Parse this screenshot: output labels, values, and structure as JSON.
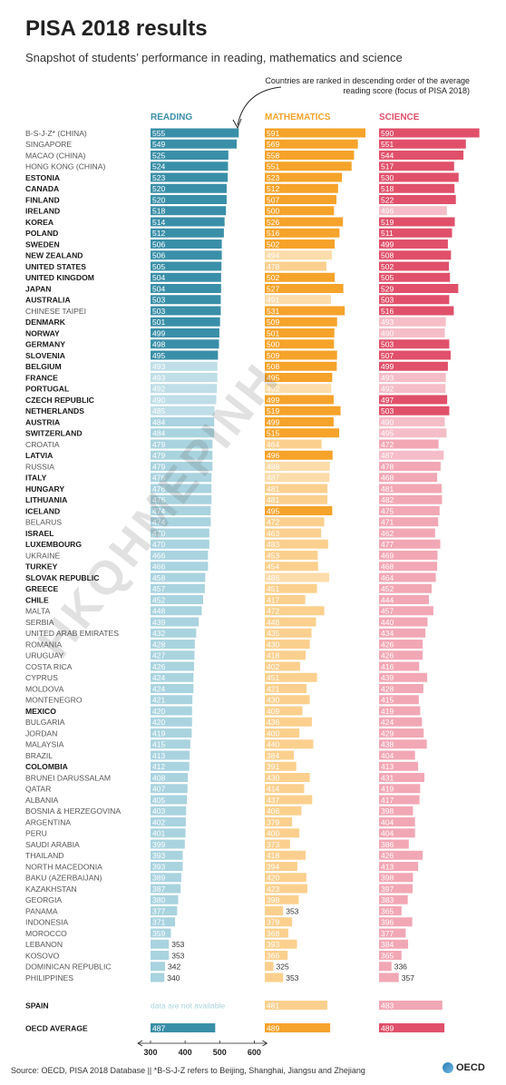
{
  "title": "PISA 2018 results",
  "subtitle": "Snapshot of students’ performance in reading, mathematics and science",
  "note": "Countries are ranked in descending order of the average reading score (focus of PISA 2018)",
  "watermark": "HKQHMEPINH",
  "source": "Source: OECD, PISA 2018 Database  ||  *B-S-J-Z refers to Beijing, Shanghai, Jiangsu and Zhejiang",
  "logo": "OECD",
  "colors": {
    "reading": "#3a8fa8",
    "reading_light": "#a9d3df",
    "math": "#f5a32a",
    "math_light": "#fbd08e",
    "science": "#e0506a",
    "science_light": "#f2a7b4",
    "oecd_reading": "#3a8fa8",
    "oecd_math": "#f5a32a",
    "oecd_science": "#e0506a"
  },
  "chart_data": {
    "type": "bar",
    "series": [
      {
        "name": "READING"
      },
      {
        "name": "MATHEMATICS"
      },
      {
        "name": "SCIENCE"
      }
    ],
    "xlim": [
      300,
      600
    ],
    "xticks": [
      "300",
      "400",
      "500",
      "600"
    ],
    "rows": [
      {
        "country": "B-S-J-Z* (CHINA)",
        "oecd": false,
        "r": 555,
        "m": 591,
        "s": 590,
        "rs": "above",
        "ms": "above",
        "ss": "above"
      },
      {
        "country": "SINGAPORE",
        "oecd": false,
        "r": 549,
        "m": 569,
        "s": 551,
        "rs": "above",
        "ms": "above",
        "ss": "above"
      },
      {
        "country": "MACAO (CHINA)",
        "oecd": false,
        "r": 525,
        "m": 558,
        "s": 544,
        "rs": "above",
        "ms": "above",
        "ss": "above"
      },
      {
        "country": "HONG KONG (CHINA)",
        "oecd": false,
        "r": 524,
        "m": 551,
        "s": 517,
        "rs": "above",
        "ms": "above",
        "ss": "above"
      },
      {
        "country": "ESTONIA",
        "oecd": true,
        "r": 523,
        "m": 523,
        "s": 530,
        "rs": "above",
        "ms": "above",
        "ss": "above"
      },
      {
        "country": "CANADA",
        "oecd": true,
        "r": 520,
        "m": 512,
        "s": 518,
        "rs": "above",
        "ms": "above",
        "ss": "above"
      },
      {
        "country": "FINLAND",
        "oecd": true,
        "r": 520,
        "m": 507,
        "s": 522,
        "rs": "above",
        "ms": "above",
        "ss": "above"
      },
      {
        "country": "IRELAND",
        "oecd": true,
        "r": 518,
        "m": 500,
        "s": 496,
        "rs": "above",
        "ms": "above",
        "ss": "not"
      },
      {
        "country": "KOREA",
        "oecd": true,
        "r": 514,
        "m": 526,
        "s": 519,
        "rs": "above",
        "ms": "above",
        "ss": "above"
      },
      {
        "country": "POLAND",
        "oecd": true,
        "r": 512,
        "m": 516,
        "s": 511,
        "rs": "above",
        "ms": "above",
        "ss": "above"
      },
      {
        "country": "SWEDEN",
        "oecd": true,
        "r": 506,
        "m": 502,
        "s": 499,
        "rs": "above",
        "ms": "above",
        "ss": "above"
      },
      {
        "country": "NEW ZEALAND",
        "oecd": true,
        "r": 506,
        "m": 494,
        "s": 508,
        "rs": "above",
        "ms": "not",
        "ss": "above"
      },
      {
        "country": "UNITED STATES",
        "oecd": true,
        "r": 505,
        "m": 478,
        "s": 502,
        "rs": "above",
        "ms": "below",
        "ss": "above"
      },
      {
        "country": "UNITED KINGDOM",
        "oecd": true,
        "r": 504,
        "m": 502,
        "s": 505,
        "rs": "above",
        "ms": "above",
        "ss": "above"
      },
      {
        "country": "JAPAN",
        "oecd": true,
        "r": 504,
        "m": 527,
        "s": 529,
        "rs": "above",
        "ms": "above",
        "ss": "above"
      },
      {
        "country": "AUSTRALIA",
        "oecd": true,
        "r": 503,
        "m": 491,
        "s": 503,
        "rs": "above",
        "ms": "not",
        "ss": "above"
      },
      {
        "country": "CHINESE TAIPEI",
        "oecd": false,
        "r": 503,
        "m": 531,
        "s": 516,
        "rs": "above",
        "ms": "above",
        "ss": "above"
      },
      {
        "country": "DENMARK",
        "oecd": true,
        "r": 501,
        "m": 509,
        "s": 493,
        "rs": "above",
        "ms": "above",
        "ss": "not"
      },
      {
        "country": "NORWAY",
        "oecd": true,
        "r": 499,
        "m": 501,
        "s": 490,
        "rs": "above",
        "ms": "above",
        "ss": "not"
      },
      {
        "country": "GERMANY",
        "oecd": true,
        "r": 498,
        "m": 500,
        "s": 503,
        "rs": "above",
        "ms": "above",
        "ss": "above"
      },
      {
        "country": "SLOVENIA",
        "oecd": true,
        "r": 495,
        "m": 509,
        "s": 507,
        "rs": "above",
        "ms": "above",
        "ss": "above"
      },
      {
        "country": "BELGIUM",
        "oecd": true,
        "r": 493,
        "m": 508,
        "s": 499,
        "rs": "not",
        "ms": "above",
        "ss": "above"
      },
      {
        "country": "FRANCE",
        "oecd": true,
        "r": 493,
        "m": 495,
        "s": 493,
        "rs": "not",
        "ms": "above",
        "ss": "not"
      },
      {
        "country": "PORTUGAL",
        "oecd": true,
        "r": 492,
        "m": 492,
        "s": 492,
        "rs": "not",
        "ms": "not",
        "ss": "not"
      },
      {
        "country": "CZECH REPUBLIC",
        "oecd": true,
        "r": 490,
        "m": 499,
        "s": 497,
        "rs": "not",
        "ms": "above",
        "ss": "above"
      },
      {
        "country": "NETHERLANDS",
        "oecd": true,
        "r": 485,
        "m": 519,
        "s": 503,
        "rs": "not",
        "ms": "above",
        "ss": "above"
      },
      {
        "country": "AUSTRIA",
        "oecd": true,
        "r": 484,
        "m": 499,
        "s": 490,
        "rs": "below",
        "ms": "above",
        "ss": "not"
      },
      {
        "country": "SWITZERLAND",
        "oecd": true,
        "r": 484,
        "m": 515,
        "s": 495,
        "rs": "below",
        "ms": "above",
        "ss": "not"
      },
      {
        "country": "CROATIA",
        "oecd": false,
        "r": 479,
        "m": 464,
        "s": 472,
        "rs": "below",
        "ms": "below",
        "ss": "below"
      },
      {
        "country": "LATVIA",
        "oecd": true,
        "r": 479,
        "m": 496,
        "s": 487,
        "rs": "below",
        "ms": "above",
        "ss": "not"
      },
      {
        "country": "RUSSIA",
        "oecd": false,
        "r": 479,
        "m": 488,
        "s": 478,
        "rs": "below",
        "ms": "not",
        "ss": "below"
      },
      {
        "country": "ITALY",
        "oecd": true,
        "r": 476,
        "m": 487,
        "s": 468,
        "rs": "below",
        "ms": "not",
        "ss": "below"
      },
      {
        "country": "HUNGARY",
        "oecd": true,
        "r": 476,
        "m": 481,
        "s": 481,
        "rs": "below",
        "ms": "below",
        "ss": "below"
      },
      {
        "country": "LITHUANIA",
        "oecd": true,
        "r": 476,
        "m": 481,
        "s": 482,
        "rs": "below",
        "ms": "below",
        "ss": "below"
      },
      {
        "country": "ICELAND",
        "oecd": true,
        "r": 474,
        "m": 495,
        "s": 475,
        "rs": "below",
        "ms": "above",
        "ss": "below"
      },
      {
        "country": "BELARUS",
        "oecd": false,
        "r": 474,
        "m": 472,
        "s": 471,
        "rs": "below",
        "ms": "below",
        "ss": "below"
      },
      {
        "country": "ISRAEL",
        "oecd": true,
        "r": 470,
        "m": 463,
        "s": 462,
        "rs": "below",
        "ms": "below",
        "ss": "below"
      },
      {
        "country": "LUXEMBOURG",
        "oecd": true,
        "r": 470,
        "m": 483,
        "s": 477,
        "rs": "below",
        "ms": "below",
        "ss": "below"
      },
      {
        "country": "UKRAINE",
        "oecd": false,
        "r": 466,
        "m": 453,
        "s": 469,
        "rs": "below",
        "ms": "below",
        "ss": "below"
      },
      {
        "country": "TURKEY",
        "oecd": true,
        "r": 466,
        "m": 454,
        "s": 468,
        "rs": "below",
        "ms": "below",
        "ss": "below"
      },
      {
        "country": "SLOVAK REPUBLIC",
        "oecd": true,
        "r": 458,
        "m": 486,
        "s": 464,
        "rs": "below",
        "ms": "not",
        "ss": "below"
      },
      {
        "country": "GREECE",
        "oecd": true,
        "r": 457,
        "m": 451,
        "s": 452,
        "rs": "below",
        "ms": "below",
        "ss": "below"
      },
      {
        "country": "CHILE",
        "oecd": true,
        "r": 452,
        "m": 417,
        "s": 444,
        "rs": "below",
        "ms": "below",
        "ss": "below"
      },
      {
        "country": "MALTA",
        "oecd": false,
        "r": 448,
        "m": 472,
        "s": 457,
        "rs": "below",
        "ms": "below",
        "ss": "below"
      },
      {
        "country": "SERBIA",
        "oecd": false,
        "r": 439,
        "m": 448,
        "s": 440,
        "rs": "below",
        "ms": "below",
        "ss": "below"
      },
      {
        "country": "UNITED ARAB EMIRATES",
        "oecd": false,
        "r": 432,
        "m": 435,
        "s": 434,
        "rs": "below",
        "ms": "below",
        "ss": "below"
      },
      {
        "country": "ROMANIA",
        "oecd": false,
        "r": 428,
        "m": 430,
        "s": 426,
        "rs": "below",
        "ms": "below",
        "ss": "below"
      },
      {
        "country": "URUGUAY",
        "oecd": false,
        "r": 427,
        "m": 418,
        "s": 426,
        "rs": "below",
        "ms": "below",
        "ss": "below"
      },
      {
        "country": "COSTA RICA",
        "oecd": false,
        "r": 426,
        "m": 402,
        "s": 416,
        "rs": "below",
        "ms": "below",
        "ss": "below"
      },
      {
        "country": "CYPRUS",
        "oecd": false,
        "r": 424,
        "m": 451,
        "s": 439,
        "rs": "below",
        "ms": "below",
        "ss": "below"
      },
      {
        "country": "MOLDOVA",
        "oecd": false,
        "r": 424,
        "m": 421,
        "s": 428,
        "rs": "below",
        "ms": "below",
        "ss": "below"
      },
      {
        "country": "MONTENEGRO",
        "oecd": false,
        "r": 421,
        "m": 430,
        "s": 415,
        "rs": "below",
        "ms": "below",
        "ss": "below"
      },
      {
        "country": "MEXICO",
        "oecd": true,
        "r": 420,
        "m": 409,
        "s": 419,
        "rs": "below",
        "ms": "below",
        "ss": "below"
      },
      {
        "country": "BULGARIA",
        "oecd": false,
        "r": 420,
        "m": 436,
        "s": 424,
        "rs": "below",
        "ms": "below",
        "ss": "below"
      },
      {
        "country": "JORDAN",
        "oecd": false,
        "r": 419,
        "m": 400,
        "s": 429,
        "rs": "below",
        "ms": "below",
        "ss": "below"
      },
      {
        "country": "MALAYSIA",
        "oecd": false,
        "r": 415,
        "m": 440,
        "s": 438,
        "rs": "below",
        "ms": "below",
        "ss": "below"
      },
      {
        "country": "BRAZIL",
        "oecd": false,
        "r": 413,
        "m": 384,
        "s": 404,
        "rs": "below",
        "ms": "below",
        "ss": "below"
      },
      {
        "country": "COLOMBIA",
        "oecd": true,
        "r": 412,
        "m": 391,
        "s": 413,
        "rs": "below",
        "ms": "below",
        "ss": "below"
      },
      {
        "country": "BRUNEI DARUSSALAM",
        "oecd": false,
        "r": 408,
        "m": 430,
        "s": 431,
        "rs": "below",
        "ms": "below",
        "ss": "below"
      },
      {
        "country": "QATAR",
        "oecd": false,
        "r": 407,
        "m": 414,
        "s": 419,
        "rs": "below",
        "ms": "below",
        "ss": "below"
      },
      {
        "country": "ALBANIA",
        "oecd": false,
        "r": 405,
        "m": 437,
        "s": 417,
        "rs": "below",
        "ms": "below",
        "ss": "below"
      },
      {
        "country": "BOSNIA & HERZEGOVINA",
        "oecd": false,
        "r": 403,
        "m": 406,
        "s": 398,
        "rs": "below",
        "ms": "below",
        "ss": "below"
      },
      {
        "country": "ARGENTINA",
        "oecd": false,
        "r": 402,
        "m": 379,
        "s": 404,
        "rs": "below",
        "ms": "below",
        "ss": "below"
      },
      {
        "country": "PERU",
        "oecd": false,
        "r": 401,
        "m": 400,
        "s": 404,
        "rs": "below",
        "ms": "below",
        "ss": "below"
      },
      {
        "country": "SAUDI ARABIA",
        "oecd": false,
        "r": 399,
        "m": 373,
        "s": 386,
        "rs": "below",
        "ms": "below",
        "ss": "below"
      },
      {
        "country": "THAILAND",
        "oecd": false,
        "r": 393,
        "m": 418,
        "s": 426,
        "rs": "below",
        "ms": "below",
        "ss": "below"
      },
      {
        "country": "NORTH MACEDONIA",
        "oecd": false,
        "r": 393,
        "m": 394,
        "s": 413,
        "rs": "below",
        "ms": "below",
        "ss": "below"
      },
      {
        "country": "BAKU (AZERBAIJAN)",
        "oecd": false,
        "r": 389,
        "m": 420,
        "s": 398,
        "rs": "below",
        "ms": "below",
        "ss": "below"
      },
      {
        "country": "KAZAKHSTAN",
        "oecd": false,
        "r": 387,
        "m": 423,
        "s": 397,
        "rs": "below",
        "ms": "below",
        "ss": "below"
      },
      {
        "country": "GEORGIA",
        "oecd": false,
        "r": 380,
        "m": 398,
        "s": 383,
        "rs": "below",
        "ms": "below",
        "ss": "below"
      },
      {
        "country": "PANAMA",
        "oecd": false,
        "r": 377,
        "m": 353,
        "s": 365,
        "rs": "below",
        "ms": "below",
        "ss": "below"
      },
      {
        "country": "INDONESIA",
        "oecd": false,
        "r": 371,
        "m": 379,
        "s": 396,
        "rs": "below",
        "ms": "below",
        "ss": "below"
      },
      {
        "country": "MOROCCO",
        "oecd": false,
        "r": 359,
        "m": 368,
        "s": 377,
        "rs": "below",
        "ms": "below",
        "ss": "below"
      },
      {
        "country": "LEBANON",
        "oecd": false,
        "r": 353,
        "m": 393,
        "s": 384,
        "rs": "below",
        "ms": "below",
        "ss": "below"
      },
      {
        "country": "KOSOVO",
        "oecd": false,
        "r": 353,
        "m": 366,
        "s": 365,
        "rs": "below",
        "ms": "below",
        "ss": "below"
      },
      {
        "country": "DOMINICAN REPUBLIC",
        "oecd": false,
        "r": 342,
        "m": 325,
        "s": 336,
        "rs": "below",
        "ms": "below",
        "ss": "below"
      },
      {
        "country": "PHILIPPINES",
        "oecd": false,
        "r": 340,
        "m": 353,
        "s": 357,
        "rs": "below",
        "ms": "below",
        "ss": "below"
      }
    ],
    "spain": {
      "country": "SPAIN",
      "oecd": true,
      "reading_text": "data are not available",
      "m": 481,
      "s": 483,
      "ms": "below",
      "ss": "below"
    },
    "oecd_average": {
      "country": "OECD AVERAGE",
      "r": 487,
      "m": 489,
      "s": 489
    }
  }
}
